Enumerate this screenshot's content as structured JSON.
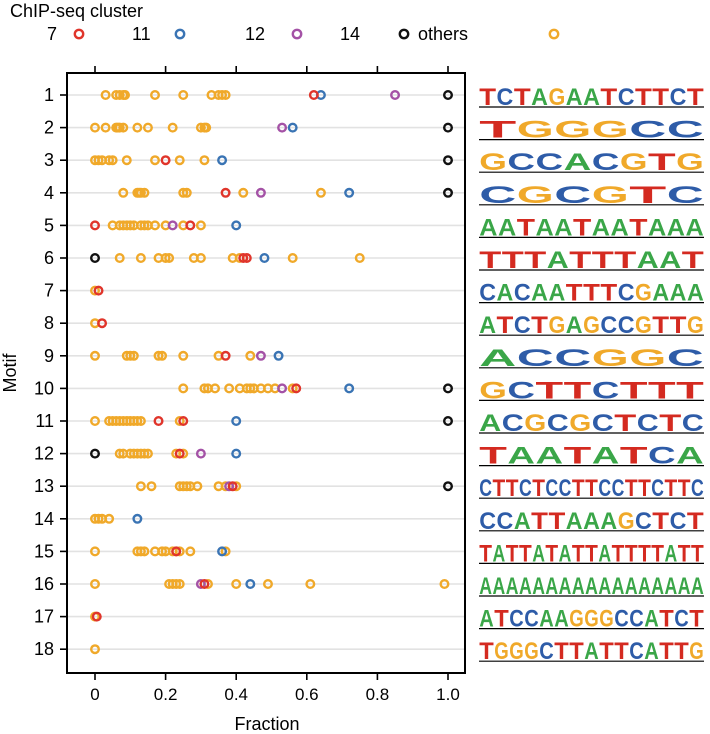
{
  "chart_data": {
    "type": "scatter",
    "legend_title": "ChIP-seq cluster",
    "legend": [
      {
        "name": "7",
        "color": "#e0352b"
      },
      {
        "name": "11",
        "color": "#3a74b4"
      },
      {
        "name": "12",
        "color": "#a452a6"
      },
      {
        "name": "14",
        "color": "#111111"
      },
      {
        "name": "others",
        "color": "#f0a92a"
      }
    ],
    "xlabel": "Fraction",
    "ylabel": "Motif",
    "xlim": [
      -0.07,
      1.05
    ],
    "xticks": [
      "0",
      "0.2",
      "0.4",
      "0.6",
      "0.8",
      "1.0"
    ],
    "xtick_values": [
      0,
      0.2,
      0.4,
      0.6,
      0.8,
      1.0
    ],
    "motifs": [
      {
        "label": "1",
        "logo": "TCTAGAATCTTCT",
        "others": [
          0.03,
          0.06,
          0.07,
          0.08,
          0.085,
          0.17,
          0.25,
          0.33,
          0.35,
          0.36,
          0.37
        ],
        "c7": [
          0.62
        ],
        "c11": [
          0.64
        ],
        "c12": [
          0.85
        ],
        "c14": [
          1.0
        ]
      },
      {
        "label": "2",
        "logo": "TGGGCC",
        "others": [
          0.0,
          0.03,
          0.06,
          0.065,
          0.07,
          0.08,
          0.12,
          0.15,
          0.22,
          0.3,
          0.31,
          0.315
        ],
        "c7": [],
        "c11": [
          0.56
        ],
        "c12": [
          0.53
        ],
        "c14": [
          1.0
        ]
      },
      {
        "label": "3",
        "logo": "GCCACGTG",
        "others": [
          0.0,
          0.01,
          0.02,
          0.04,
          0.05,
          0.09,
          0.17,
          0.24,
          0.31
        ],
        "c7": [
          0.2
        ],
        "c11": [
          0.36
        ],
        "c12": [],
        "c14": [
          1.0
        ]
      },
      {
        "label": "4",
        "logo": "CGCGTC",
        "others": [
          0.08,
          0.12,
          0.125,
          0.13,
          0.14,
          0.25,
          0.26,
          0.42,
          0.64
        ],
        "c7": [
          0.37
        ],
        "c11": [
          0.72
        ],
        "c12": [
          0.47
        ],
        "c14": [
          1.0
        ]
      },
      {
        "label": "5",
        "logo": "AATAATAATAAA",
        "others": [
          0.05,
          0.07,
          0.08,
          0.09,
          0.1,
          0.11,
          0.13,
          0.14,
          0.15,
          0.17,
          0.2,
          0.25,
          0.3
        ],
        "c7": [
          0.0,
          0.27
        ],
        "c11": [
          0.4
        ],
        "c12": [
          0.22
        ],
        "c14": []
      },
      {
        "label": "6",
        "logo": "TTTATTTAAT",
        "others": [
          0.07,
          0.13,
          0.18,
          0.2,
          0.21,
          0.28,
          0.3,
          0.39,
          0.41,
          0.56,
          0.75
        ],
        "c7": [
          0.42,
          0.43
        ],
        "c11": [
          0.48
        ],
        "c12": [],
        "c14": [
          0.0
        ]
      },
      {
        "label": "7",
        "logo": "CACAATTTCGAAA",
        "others": [
          0.0
        ],
        "c7": [
          0.01
        ],
        "c11": [],
        "c12": [],
        "c14": []
      },
      {
        "label": "8",
        "logo": "ATCTGAGCCGTTG",
        "others": [
          0.0
        ],
        "c7": [
          0.02
        ],
        "c11": [],
        "c12": [],
        "c14": []
      },
      {
        "label": "9",
        "logo": "ACCGGC",
        "others": [
          0.0,
          0.09,
          0.1,
          0.11,
          0.18,
          0.19,
          0.25,
          0.35,
          0.44
        ],
        "c7": [
          0.37
        ],
        "c11": [
          0.52
        ],
        "c12": [
          0.47
        ],
        "c14": []
      },
      {
        "label": "10",
        "logo": "GCTTCTTT",
        "others": [
          0.25,
          0.31,
          0.32,
          0.34,
          0.38,
          0.41,
          0.43,
          0.44,
          0.45,
          0.47,
          0.49,
          0.51,
          0.56
        ],
        "c7": [
          0.57
        ],
        "c11": [
          0.72
        ],
        "c12": [
          0.53
        ],
        "c14": [
          1.0
        ]
      },
      {
        "label": "11",
        "logo": "ACGCGCTCTC",
        "others": [
          0.0,
          0.04,
          0.05,
          0.06,
          0.07,
          0.08,
          0.09,
          0.1,
          0.11,
          0.12,
          0.13,
          0.24
        ],
        "c7": [
          0.18,
          0.25
        ],
        "c11": [
          0.4
        ],
        "c12": [],
        "c14": [
          1.0
        ]
      },
      {
        "label": "12",
        "logo": "TAATATCA",
        "others": [
          0.07,
          0.08,
          0.1,
          0.11,
          0.12,
          0.13,
          0.14,
          0.15,
          0.23,
          0.25
        ],
        "c7": [
          0.24
        ],
        "c11": [
          0.4
        ],
        "c12": [
          0.3
        ],
        "c14": [
          0.0
        ]
      },
      {
        "label": "13",
        "logo": "CTTCTCCTTCCTTCTTC",
        "others": [
          0.13,
          0.16,
          0.24,
          0.25,
          0.26,
          0.27,
          0.29,
          0.35,
          0.37,
          0.4
        ],
        "c7": [
          0.39
        ],
        "c11": [],
        "c12": [
          0.38
        ],
        "c14": [
          1.0
        ]
      },
      {
        "label": "14",
        "logo": "CCATTAAAGCTCT",
        "others": [
          0.0,
          0.01,
          0.02,
          0.04
        ],
        "c7": [],
        "c11": [
          0.12
        ],
        "c12": [],
        "c14": []
      },
      {
        "label": "15",
        "logo": "TATTATATTATTTTATT",
        "others": [
          0.0,
          0.12,
          0.13,
          0.14,
          0.17,
          0.19,
          0.2,
          0.22,
          0.23,
          0.24,
          0.27,
          0.37
        ],
        "c7": [
          0.23
        ],
        "c11": [
          0.36
        ],
        "c12": [],
        "c14": []
      },
      {
        "label": "16",
        "logo": "AAAAAAAAAAAAAAAAA",
        "others": [
          0.0,
          0.21,
          0.22,
          0.23,
          0.24,
          0.32,
          0.4,
          0.49,
          0.61,
          0.99
        ],
        "c7": [
          0.31
        ],
        "c11": [
          0.44
        ],
        "c12": [
          0.3
        ],
        "c14": []
      },
      {
        "label": "17",
        "logo": "ATCCAAGGGCCATCT",
        "others": [
          0.0
        ],
        "c7": [
          0.005
        ],
        "c11": [],
        "c12": [],
        "c14": []
      },
      {
        "label": "18",
        "logo": "TGGGCTTATTCATTG",
        "others": [
          0.0
        ],
        "c7": [],
        "c11": [],
        "c12": [],
        "c14": []
      }
    ],
    "nucleotide_colors": {
      "A": "#3aa648",
      "C": "#2e5ca8",
      "G": "#f0a92a",
      "T": "#d42a20"
    }
  }
}
